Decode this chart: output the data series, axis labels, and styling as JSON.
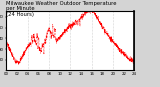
{
  "title": "Milwaukee Weather Outdoor Temperature\nper Minute\n(24 Hours)",
  "line_color": "#ff0000",
  "bg_color": "#d4d4d4",
  "plot_bg_color": "#ffffff",
  "grid_color": "#888888",
  "ylim": [
    11,
    65
  ],
  "yticks": [
    20,
    30,
    40,
    50,
    60
  ],
  "ytick_labels": [
    "20",
    "30",
    "40",
    "50",
    "60"
  ],
  "title_fontsize": 3.8,
  "tick_fontsize": 2.8,
  "linewidth": 0.4
}
